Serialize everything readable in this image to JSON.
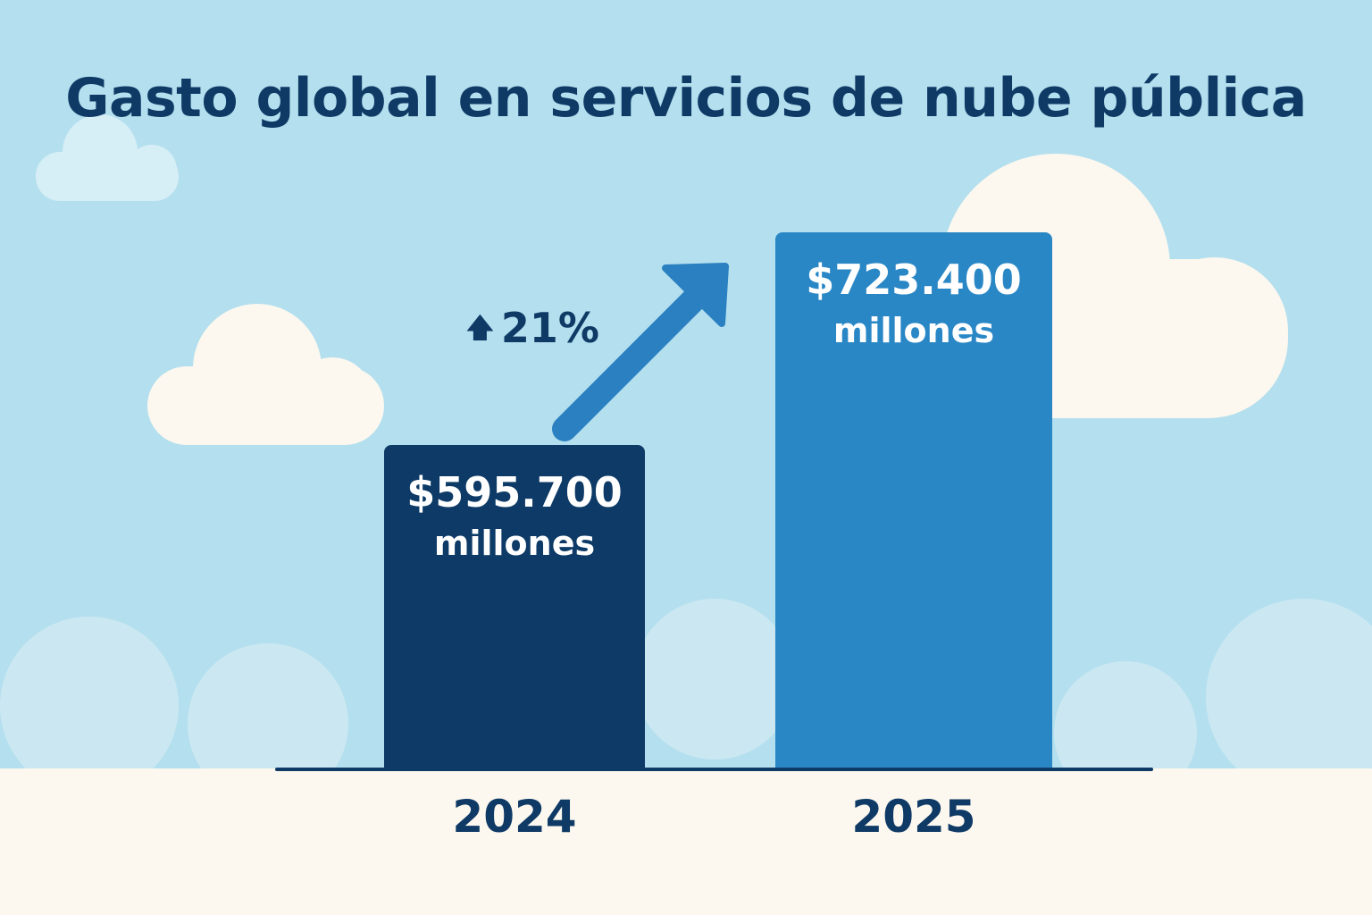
{
  "chart_data": {
    "type": "bar",
    "title": "Gasto global en servicios de nube pública",
    "categories": [
      "2024",
      "2025"
    ],
    "values": [
      595700,
      723400
    ],
    "unit": "millones",
    "data_labels": [
      {
        "value": "$595.700",
        "unit": "millones"
      },
      {
        "value": "$723.400",
        "unit": "millones"
      }
    ],
    "annotation": {
      "icon": "arrow-up-icon",
      "text": "21%"
    },
    "grid": false,
    "colors": {
      "2024": "#0d3a66",
      "2025": "#2a87c6",
      "arrow": "#2a80c0",
      "text": "#0f3a66",
      "sky": "#b4dfee",
      "ground": "#fcf8ef"
    }
  }
}
